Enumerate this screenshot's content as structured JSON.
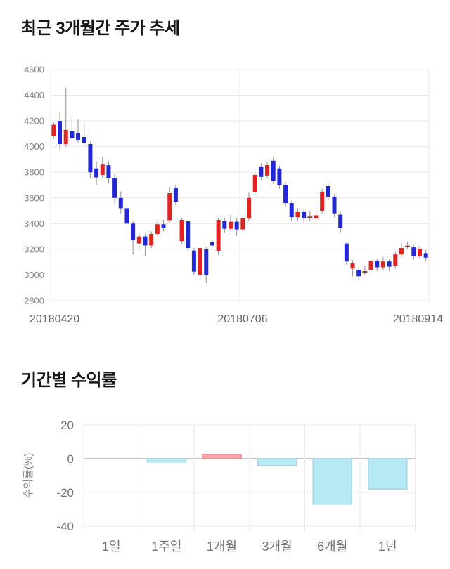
{
  "price_section_title": "최근 3개월간 주가 추세",
  "returns_section_title": "기간별 수익률",
  "chart_data": [
    {
      "type": "candlestick",
      "title": "최근 3개월간 주가 추세",
      "ylim": [
        2800,
        4600
      ],
      "y_ticks": [
        4600,
        4400,
        4200,
        4000,
        3800,
        3600,
        3400,
        3200,
        3000,
        2800
      ],
      "x_tick_labels": [
        "20180420",
        "20180706",
        "20180914"
      ],
      "grid": true,
      "up_color": "#e02423",
      "down_color": "#2128d4",
      "doji_color": "#8e3b34",
      "wick_color": "#999999",
      "candles_ohlc": [
        [
          4080,
          4190,
          4060,
          4170
        ],
        [
          4200,
          4270,
          3970,
          4020
        ],
        [
          4020,
          4460,
          4000,
          4130
        ],
        [
          4120,
          4230,
          4045,
          4065
        ],
        [
          4105,
          4210,
          4030,
          4050
        ],
        [
          4075,
          4180,
          4010,
          4030
        ],
        [
          4020,
          4040,
          3755,
          3800
        ],
        [
          3830,
          3885,
          3700,
          3760
        ],
        [
          3780,
          3920,
          3755,
          3860
        ],
        [
          3855,
          3890,
          3715,
          3755
        ],
        [
          3755,
          3790,
          3560,
          3600
        ],
        [
          3600,
          3650,
          3480,
          3520
        ],
        [
          3520,
          3545,
          3330,
          3400
        ],
        [
          3400,
          3420,
          3160,
          3270
        ],
        [
          3245,
          3330,
          3195,
          3300
        ],
        [
          3300,
          3320,
          3150,
          3230
        ],
        [
          3230,
          3340,
          3210,
          3320
        ],
        [
          3320,
          3420,
          3300,
          3395
        ],
        [
          3395,
          3430,
          3340,
          3365
        ],
        [
          3427,
          3685,
          3410,
          3637
        ],
        [
          3680,
          3700,
          3545,
          3570
        ],
        [
          3265,
          3445,
          3240,
          3429
        ],
        [
          3418,
          3430,
          3185,
          3210
        ],
        [
          3190,
          3210,
          3000,
          3026
        ],
        [
          3000,
          3230,
          2965,
          3210
        ],
        [
          3200,
          3220,
          2938,
          3000
        ],
        [
          3255,
          3270,
          3215,
          3230
        ],
        [
          3185,
          3440,
          3155,
          3429
        ],
        [
          3420,
          3446,
          3330,
          3360
        ],
        [
          3360,
          3470,
          3340,
          3415
        ],
        [
          3415,
          3440,
          3305,
          3355
        ],
        [
          3355,
          3460,
          3335,
          3440
        ],
        [
          3440,
          3640,
          3420,
          3600
        ],
        [
          3648,
          3800,
          3620,
          3780
        ],
        [
          3840,
          3870,
          3740,
          3764
        ],
        [
          3775,
          3880,
          3750,
          3856
        ],
        [
          3890,
          3920,
          3710,
          3735
        ],
        [
          3830,
          3850,
          3670,
          3700
        ],
        [
          3700,
          3720,
          3530,
          3560
        ],
        [
          3560,
          3580,
          3420,
          3450
        ],
        [
          3450,
          3520,
          3420,
          3490
        ],
        [
          3490,
          3510,
          3410,
          3440
        ],
        [
          3455,
          3495,
          3420,
          3455
        ],
        [
          3440,
          3480,
          3400,
          3465
        ],
        [
          3500,
          3670,
          3480,
          3648
        ],
        [
          3692,
          3710,
          3580,
          3610
        ],
        [
          3610,
          3630,
          3450,
          3480
        ],
        [
          3470,
          3490,
          3330,
          3365
        ],
        [
          3245,
          3260,
          3080,
          3105
        ],
        [
          3050,
          3115,
          2990,
          3090
        ],
        [
          3040,
          3060,
          2960,
          2990
        ],
        [
          3030,
          3070,
          3000,
          3030
        ],
        [
          3040,
          3130,
          3020,
          3110
        ],
        [
          3110,
          3125,
          3030,
          3060
        ],
        [
          3060,
          3140,
          3040,
          3105
        ],
        [
          3105,
          3120,
          3030,
          3065
        ],
        [
          3072,
          3180,
          3050,
          3160
        ],
        [
          3160,
          3250,
          3140,
          3210
        ],
        [
          3228,
          3260,
          3200,
          3228
        ],
        [
          3215,
          3235,
          3120,
          3145
        ],
        [
          3145,
          3225,
          3125,
          3205
        ],
        [
          3170,
          3195,
          3110,
          3135
        ]
      ]
    },
    {
      "type": "bar",
      "title": "기간별 수익률",
      "ylabel": "수익률(%)",
      "ylim": [
        -40,
        20
      ],
      "y_ticks": [
        20,
        0,
        -20,
        -40
      ],
      "categories": [
        "1일",
        "1주일",
        "1개월",
        "3개월",
        "6개월",
        "1년"
      ],
      "values": [
        0,
        -2,
        2.5,
        -4,
        -27,
        -18
      ],
      "grid": true,
      "positive_fill": "#f9a9ad",
      "positive_stroke": "#f0878d",
      "negative_fill": "#b5e9f5",
      "negative_stroke": "#a9d5de",
      "zero_line_color": "#b0b0b0",
      "grid_color": "#e9e9e9"
    }
  ]
}
